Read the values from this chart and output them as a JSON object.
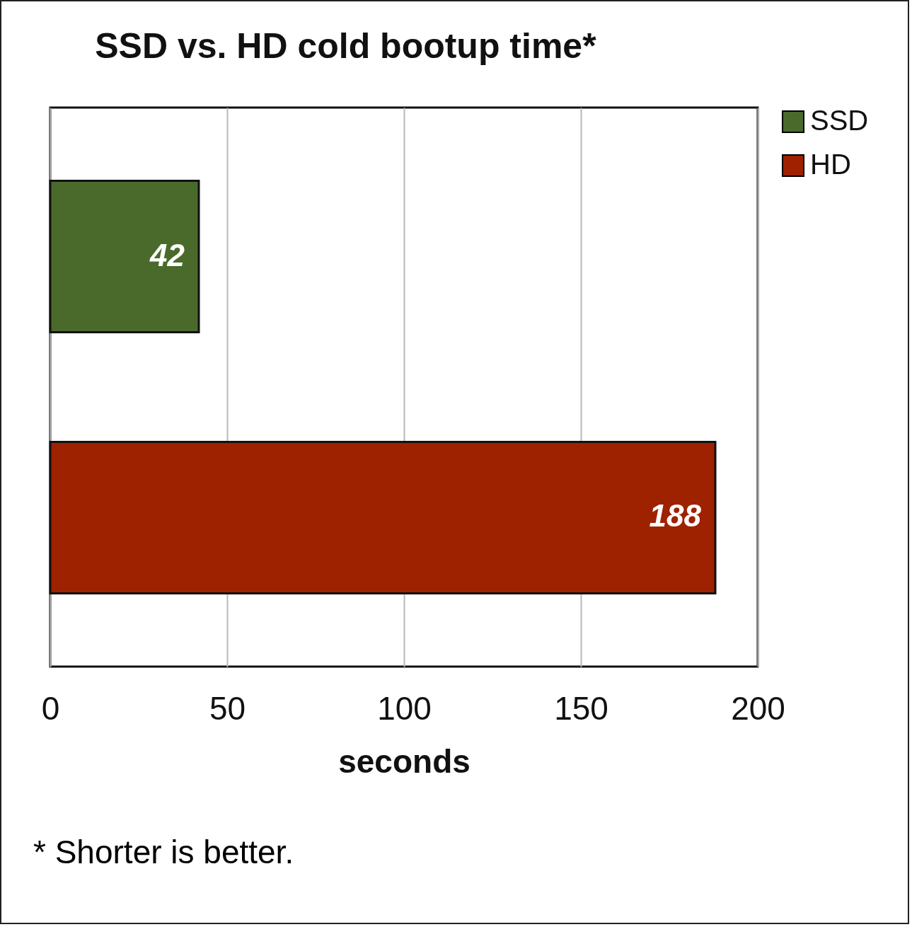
{
  "chart_data": {
    "type": "bar",
    "title": "SSD vs. HD cold bootup time*",
    "orientation": "horizontal",
    "categories": [
      null
    ],
    "series": [
      {
        "name": "SSD",
        "color": "#4a6a2c",
        "values": [
          42
        ]
      },
      {
        "name": "HD",
        "color": "#9e2200",
        "values": [
          188
        ]
      }
    ],
    "xlabel": "seconds",
    "xlim": [
      0,
      200
    ],
    "xticks": [
      0,
      50,
      100,
      150,
      200
    ],
    "grid": "x",
    "legend": "top right",
    "data_labels": true,
    "tick_labels": "x",
    "annotations": [
      "* Shorter is better."
    ]
  }
}
